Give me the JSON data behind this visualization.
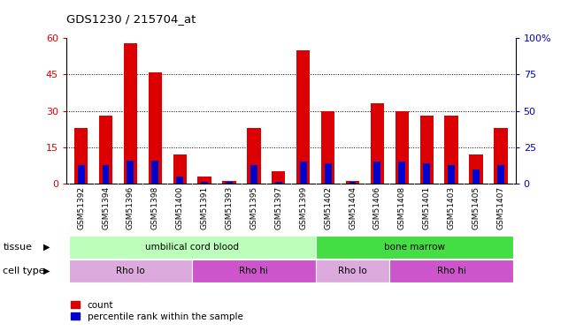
{
  "title": "GDS1230 / 215704_at",
  "samples": [
    "GSM51392",
    "GSM51394",
    "GSM51396",
    "GSM51398",
    "GSM51400",
    "GSM51391",
    "GSM51393",
    "GSM51395",
    "GSM51397",
    "GSM51399",
    "GSM51402",
    "GSM51404",
    "GSM51406",
    "GSM51408",
    "GSM51401",
    "GSM51403",
    "GSM51405",
    "GSM51407"
  ],
  "counts": [
    23,
    28,
    58,
    46,
    12,
    3,
    1,
    23,
    5,
    55,
    30,
    1,
    33,
    30,
    28,
    28,
    12,
    23
  ],
  "percentiles": [
    13,
    13,
    16,
    16,
    5,
    1,
    1,
    13,
    1,
    15,
    14,
    1,
    15,
    15,
    14,
    13,
    10,
    13
  ],
  "ylim_left": [
    0,
    60
  ],
  "ylim_right": [
    0,
    100
  ],
  "yticks_left": [
    0,
    15,
    30,
    45,
    60
  ],
  "yticks_right": [
    0,
    25,
    50,
    75,
    100
  ],
  "bar_color": "#dd0000",
  "percentile_color": "#0000cc",
  "tissue_groups": [
    {
      "label": "umbilical cord blood",
      "start": 0,
      "end": 10,
      "color": "#bbffbb"
    },
    {
      "label": "bone marrow",
      "start": 10,
      "end": 18,
      "color": "#44dd44"
    }
  ],
  "cell_type_groups": [
    {
      "label": "Rho lo",
      "start": 0,
      "end": 5,
      "color": "#ddaadd"
    },
    {
      "label": "Rho hi",
      "start": 5,
      "end": 10,
      "color": "#cc55cc"
    },
    {
      "label": "Rho lo",
      "start": 10,
      "end": 13,
      "color": "#ddaadd"
    },
    {
      "label": "Rho hi",
      "start": 13,
      "end": 18,
      "color": "#cc55cc"
    }
  ],
  "legend_count_label": "count",
  "legend_percentile_label": "percentile rank within the sample",
  "label_tissue": "tissue",
  "label_cell_type": "cell type",
  "bar_width": 0.55,
  "percentile_bar_width": 0.28
}
